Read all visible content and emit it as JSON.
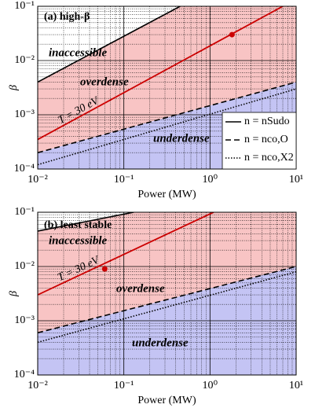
{
  "chart_data": [
    {
      "type": "line",
      "title": "(a) high-β",
      "xlabel": "Power (MW)",
      "ylabel": "β",
      "xlog": true,
      "ylog": true,
      "grid": true,
      "legend": "lower right",
      "xlim": [
        0.01,
        10
      ],
      "ylim": [
        0.0001,
        0.1
      ],
      "xticks": [
        {
          "value": 0.01,
          "label": "10⁻²"
        },
        {
          "value": 0.1,
          "label": "10⁻¹"
        },
        {
          "value": 1,
          "label": "10⁰"
        },
        {
          "value": 10,
          "label": "10¹"
        }
      ],
      "yticks": [
        {
          "value": 0.0001,
          "label": "10⁻⁴"
        },
        {
          "value": 0.001,
          "label": "10⁻³"
        },
        {
          "value": 0.01,
          "label": "10⁻²"
        },
        {
          "value": 0.1,
          "label": "10⁻¹"
        }
      ],
      "annotations": [
        "inaccessible",
        "overdense",
        "underdense"
      ],
      "series": [
        {
          "name": "n = nSudo",
          "color": "#000000",
          "dash": "solid",
          "fill": "#f8c4c4",
          "x": [
            0.01,
            0.45
          ],
          "values": [
            0.004,
            0.1
          ]
        },
        {
          "name": "n = nco,O",
          "color": "#000000",
          "dash": "dashed",
          "fill": "#c4c4f4",
          "x": [
            0.01,
            10
          ],
          "values": [
            0.0002,
            0.004
          ]
        },
        {
          "name": "n = nco,X2",
          "color": "#000000",
          "dash": "dotted",
          "x": [
            0.01,
            10
          ],
          "values": [
            0.00012,
            0.003
          ]
        }
      ],
      "temperature_line": {
        "label": "T = 30 eV",
        "color": "#cc0000",
        "x": [
          0.01,
          7
        ],
        "values": [
          0.00035,
          0.1
        ]
      },
      "points": {
        "color": "#cc0000",
        "x": [
          1.8
        ],
        "values": [
          0.03
        ]
      }
    },
    {
      "type": "line",
      "title": "(b) least stable",
      "xlabel": "Power (MW)",
      "ylabel": "β",
      "xlog": true,
      "ylog": true,
      "grid": true,
      "xlim": [
        0.01,
        10
      ],
      "ylim": [
        0.0001,
        0.1
      ],
      "xticks": [
        {
          "value": 0.01,
          "label": "10⁻²"
        },
        {
          "value": 0.1,
          "label": "10⁻¹"
        },
        {
          "value": 1,
          "label": "10⁰"
        },
        {
          "value": 10,
          "label": "10¹"
        }
      ],
      "yticks": [
        {
          "value": 0.0001,
          "label": "10⁻⁴"
        },
        {
          "value": 0.001,
          "label": "10⁻³"
        },
        {
          "value": 0.01,
          "label": "10⁻²"
        },
        {
          "value": 0.1,
          "label": "10⁻¹"
        }
      ],
      "annotations": [
        "inaccessible",
        "overdense",
        "underdense"
      ],
      "series": [
        {
          "name": "n = nSudo",
          "color": "#000000",
          "dash": "solid",
          "fill": "#f8c4c4",
          "x": [
            0.01,
            0.13
          ],
          "values": [
            0.045,
            0.1
          ]
        },
        {
          "name": "n = nco,O",
          "color": "#000000",
          "dash": "dashed",
          "fill": "#c4c4f4",
          "x": [
            0.01,
            10
          ],
          "values": [
            0.0006,
            0.01
          ]
        },
        {
          "name": "n = nco,X2",
          "color": "#000000",
          "dash": "dotted",
          "x": [
            0.01,
            10
          ],
          "values": [
            0.0004,
            0.008
          ]
        }
      ],
      "temperature_line": {
        "label": "T = 30 eV",
        "color": "#cc0000",
        "x": [
          0.01,
          1.1
        ],
        "values": [
          0.003,
          0.1
        ]
      },
      "points": {
        "color": "#cc0000",
        "x": [
          0.06
        ],
        "values": [
          0.009
        ]
      }
    }
  ]
}
